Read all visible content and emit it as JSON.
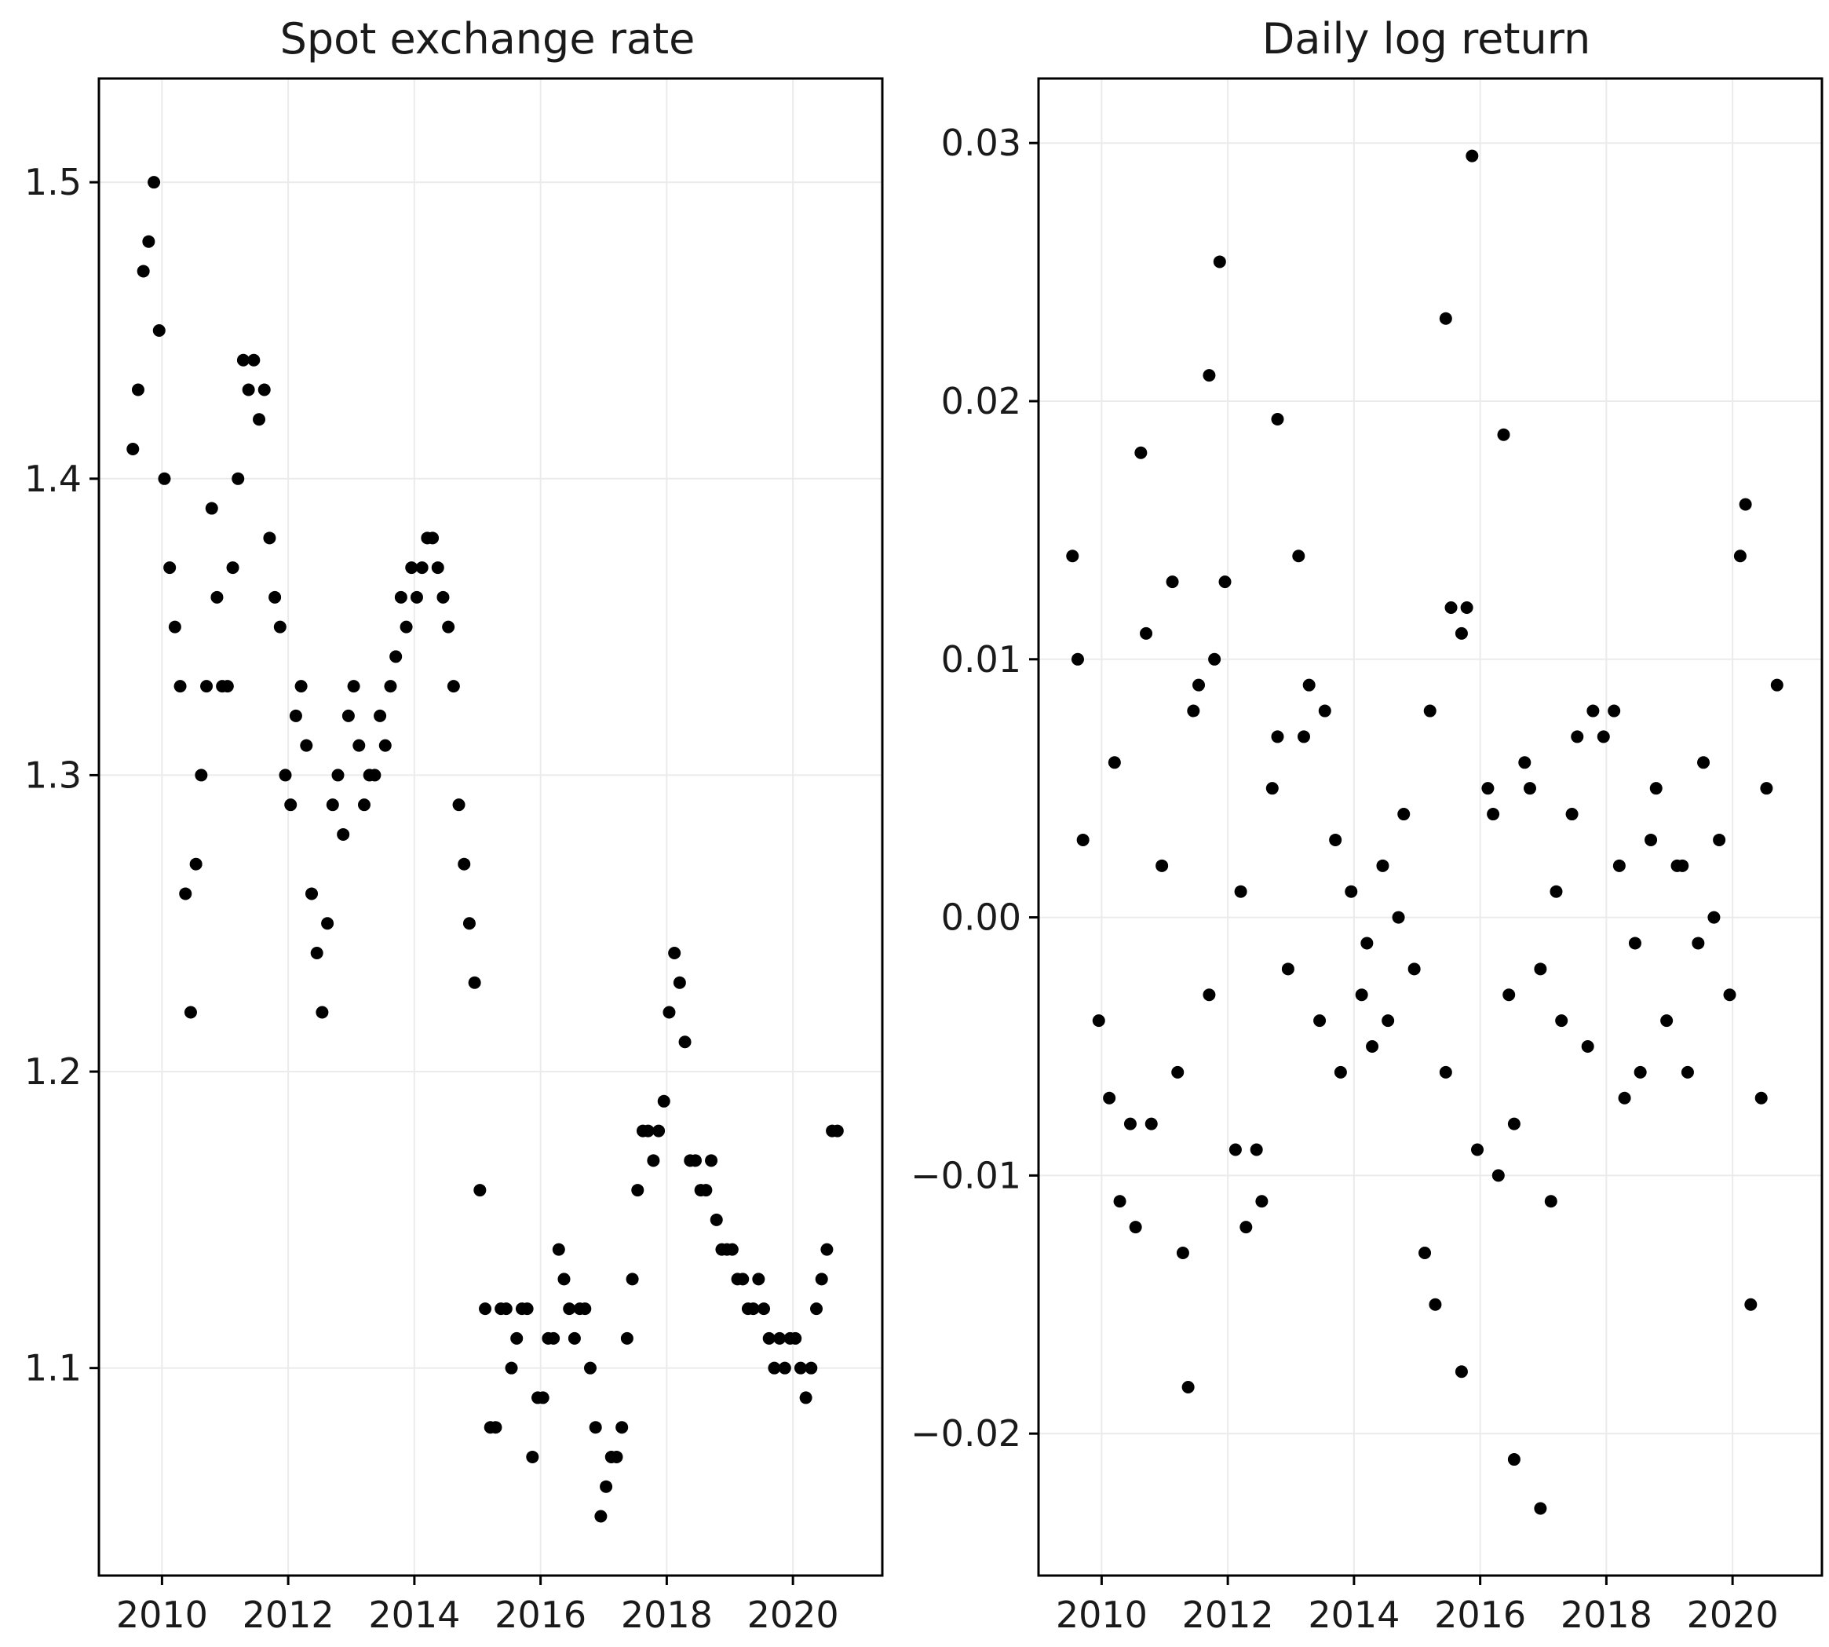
{
  "chart_data": [
    {
      "type": "scatter",
      "title": "Spot exchange rate",
      "xlabel": "",
      "ylabel": "",
      "x_ticks": [
        "2010",
        "2012",
        "2014",
        "2016",
        "2018",
        "2020"
      ],
      "y_ticks": [
        "1.1",
        "1.2",
        "1.3",
        "1.4",
        "1.5"
      ],
      "xlim": [
        "2009-01-01",
        "2021-06-01"
      ],
      "ylim": [
        1.03,
        1.535
      ],
      "grid": true,
      "marker_color": "#000000",
      "series": [
        {
          "x": [
            "2009-07",
            "2009-08",
            "2009-09",
            "2009-10",
            "2009-11",
            "2009-12",
            "2010-01",
            "2010-02",
            "2010-03",
            "2010-04",
            "2010-05",
            "2010-06",
            "2010-07",
            "2010-08",
            "2010-09",
            "2010-10",
            "2010-11",
            "2010-12",
            "2011-01",
            "2011-02",
            "2011-03",
            "2011-04",
            "2011-05",
            "2011-06",
            "2011-07",
            "2011-08",
            "2011-09",
            "2011-10",
            "2011-11",
            "2011-12",
            "2012-01",
            "2012-02",
            "2012-03",
            "2012-04",
            "2012-05",
            "2012-06",
            "2012-07",
            "2012-08",
            "2012-09",
            "2012-10",
            "2012-11",
            "2012-12",
            "2013-01",
            "2013-02",
            "2013-03",
            "2013-04",
            "2013-05",
            "2013-06",
            "2013-07",
            "2013-08",
            "2013-09",
            "2013-10",
            "2013-11",
            "2013-12",
            "2014-01",
            "2014-02",
            "2014-03",
            "2014-04",
            "2014-05",
            "2014-06",
            "2014-07",
            "2014-08",
            "2014-09",
            "2014-10",
            "2014-11",
            "2014-12",
            "2015-01",
            "2015-02",
            "2015-03",
            "2015-04",
            "2015-05",
            "2015-06",
            "2015-07",
            "2015-08",
            "2015-09",
            "2015-10",
            "2015-11",
            "2015-12",
            "2016-01",
            "2016-02",
            "2016-03",
            "2016-04",
            "2016-05",
            "2016-06",
            "2016-07",
            "2016-08",
            "2016-09",
            "2016-10",
            "2016-11",
            "2016-12",
            "2017-01",
            "2017-02",
            "2017-03",
            "2017-04",
            "2017-05",
            "2017-06",
            "2017-07",
            "2017-08",
            "2017-09",
            "2017-10",
            "2017-11",
            "2017-12",
            "2018-01",
            "2018-02",
            "2018-03",
            "2018-04",
            "2018-05",
            "2018-06",
            "2018-07",
            "2018-08",
            "2018-09",
            "2018-10",
            "2018-11",
            "2018-12",
            "2019-01",
            "2019-02",
            "2019-03",
            "2019-04",
            "2019-05",
            "2019-06",
            "2019-07",
            "2019-08",
            "2019-09",
            "2019-10",
            "2019-11",
            "2019-12",
            "2020-01",
            "2020-02",
            "2020-03",
            "2020-04",
            "2020-05",
            "2020-06",
            "2020-07",
            "2020-08",
            "2020-09"
          ],
          "y": [
            1.41,
            1.43,
            1.47,
            1.48,
            1.5,
            1.45,
            1.4,
            1.37,
            1.35,
            1.33,
            1.26,
            1.22,
            1.27,
            1.3,
            1.33,
            1.39,
            1.36,
            1.33,
            1.33,
            1.37,
            1.4,
            1.44,
            1.43,
            1.44,
            1.42,
            1.43,
            1.38,
            1.36,
            1.35,
            1.3,
            1.29,
            1.32,
            1.33,
            1.31,
            1.26,
            1.24,
            1.22,
            1.25,
            1.29,
            1.3,
            1.28,
            1.32,
            1.33,
            1.31,
            1.29,
            1.3,
            1.3,
            1.32,
            1.31,
            1.33,
            1.34,
            1.36,
            1.35,
            1.37,
            1.36,
            1.37,
            1.38,
            1.38,
            1.37,
            1.36,
            1.35,
            1.33,
            1.29,
            1.27,
            1.25,
            1.23,
            1.16,
            1.12,
            1.08,
            1.08,
            1.12,
            1.12,
            1.1,
            1.11,
            1.12,
            1.12,
            1.07,
            1.09,
            1.09,
            1.11,
            1.11,
            1.14,
            1.13,
            1.12,
            1.11,
            1.12,
            1.12,
            1.1,
            1.08,
            1.05,
            1.06,
            1.07,
            1.07,
            1.08,
            1.11,
            1.13,
            1.16,
            1.18,
            1.18,
            1.17,
            1.18,
            1.19,
            1.22,
            1.24,
            1.23,
            1.21,
            1.17,
            1.17,
            1.16,
            1.16,
            1.17,
            1.15,
            1.14,
            1.14,
            1.14,
            1.13,
            1.13,
            1.12,
            1.12,
            1.13,
            1.12,
            1.11,
            1.1,
            1.11,
            1.1,
            1.11,
            1.11,
            1.1,
            1.09,
            1.1,
            1.12,
            1.13,
            1.14,
            1.18,
            1.18
          ]
        }
      ]
    },
    {
      "type": "scatter",
      "title": "Daily log return",
      "xlabel": "",
      "ylabel": "",
      "x_ticks": [
        "2010",
        "2012",
        "2014",
        "2016",
        "2018",
        "2020"
      ],
      "y_ticks": [
        "−0.02",
        "−0.01",
        "0.00",
        "0.01",
        "0.02",
        "0.03"
      ],
      "xlim": [
        "2009-01-01",
        "2021-06-01"
      ],
      "ylim": [
        -0.0255,
        0.0325
      ],
      "grid": true,
      "marker_color": "#000000",
      "series": [
        {
          "x": [
            "2009-07",
            "2009-09",
            "2009-12",
            "2010-03",
            "2010-06",
            "2010-09",
            "2010-12",
            "2011-03",
            "2011-06",
            "2011-09",
            "2011-12",
            "2012-03",
            "2012-06",
            "2012-09",
            "2012-12",
            "2013-03",
            "2013-06",
            "2013-09",
            "2013-12",
            "2014-03",
            "2014-06",
            "2014-09",
            "2014-12",
            "2015-03",
            "2015-06",
            "2015-09",
            "2015-12",
            "2016-03",
            "2016-06",
            "2016-09",
            "2016-12",
            "2017-03",
            "2017-06",
            "2017-09",
            "2017-12",
            "2018-03",
            "2018-06",
            "2018-09",
            "2018-12",
            "2019-03",
            "2019-06",
            "2019-09",
            "2019-12",
            "2020-03",
            "2020-06",
            "2020-09",
            "2010-04",
            "2010-10",
            "2011-04",
            "2011-10",
            "2012-04",
            "2012-10",
            "2013-04",
            "2013-10",
            "2014-04",
            "2014-10",
            "2015-04",
            "2015-10",
            "2016-04",
            "2016-10",
            "2017-04",
            "2017-10",
            "2018-04",
            "2018-10",
            "2019-04",
            "2019-10",
            "2020-04",
            "2009-08",
            "2010-07",
            "2011-07",
            "2012-07",
            "2013-07",
            "2014-07",
            "2015-07",
            "2016-07",
            "2017-07",
            "2018-07",
            "2019-07",
            "2020-07",
            "2010-02",
            "2011-02",
            "2012-02",
            "2013-02",
            "2014-02",
            "2015-02",
            "2016-02",
            "2017-02",
            "2018-02",
            "2019-02",
            "2020-02",
            "2011-11",
            "2011-09",
            "2015-06",
            "2015-11",
            "2016-05",
            "2016-12",
            "2012-10",
            "2010-08",
            "2011-05",
            "2015-09",
            "2016-07"
          ],
          "y": [
            0.014,
            0.003,
            -0.004,
            0.006,
            -0.008,
            0.011,
            0.002,
            -0.006,
            0.008,
            -0.003,
            0.013,
            0.001,
            -0.009,
            0.005,
            -0.002,
            0.007,
            -0.004,
            0.003,
            0.001,
            -0.001,
            0.002,
            0.0,
            -0.002,
            0.008,
            -0.006,
            0.011,
            -0.009,
            0.004,
            -0.003,
            0.006,
            -0.002,
            0.001,
            0.004,
            -0.005,
            0.007,
            0.002,
            -0.001,
            0.003,
            -0.004,
            0.002,
            -0.001,
            0.0,
            -0.003,
            0.016,
            -0.007,
            0.009,
            -0.011,
            -0.008,
            -0.013,
            0.01,
            -0.012,
            0.007,
            0.009,
            -0.006,
            -0.005,
            0.004,
            -0.015,
            0.012,
            -0.01,
            0.005,
            -0.004,
            0.008,
            -0.007,
            0.005,
            -0.006,
            0.003,
            -0.015,
            0.01,
            -0.012,
            0.009,
            -0.011,
            0.008,
            -0.004,
            0.012,
            -0.008,
            0.007,
            -0.006,
            0.006,
            0.005,
            -0.007,
            0.013,
            -0.009,
            0.014,
            -0.003,
            -0.013,
            0.005,
            -0.011,
            0.008,
            0.002,
            0.014,
            0.0254,
            0.021,
            0.0232,
            0.0295,
            0.0187,
            -0.0229,
            0.0193,
            0.018,
            -0.0182,
            -0.0176,
            -0.021
          ]
        }
      ]
    }
  ]
}
